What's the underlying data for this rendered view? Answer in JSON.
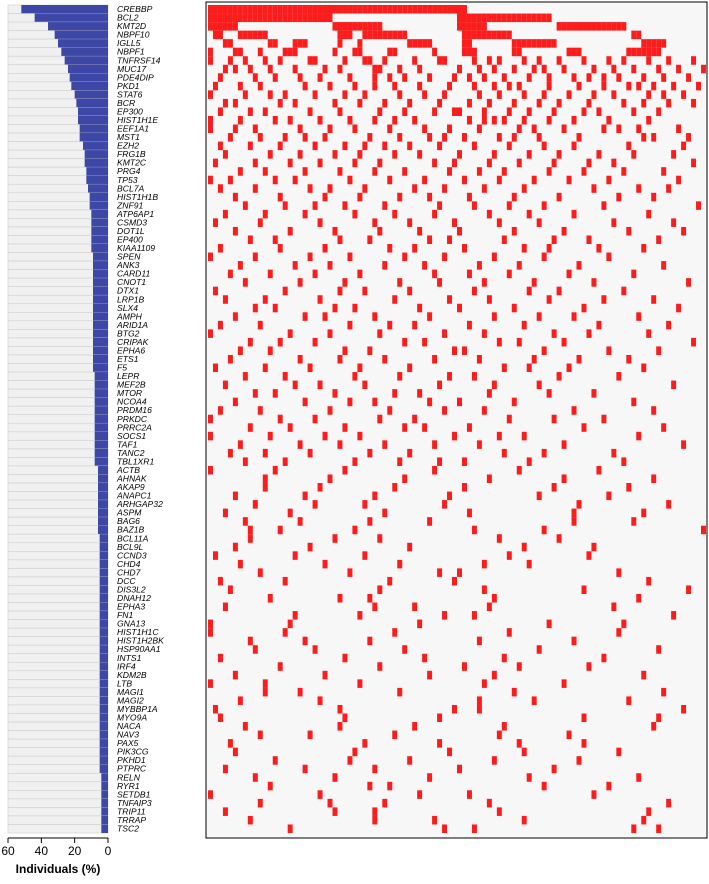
{
  "chart_data": {
    "type": "oncoprint",
    "xlabel": "Individuals (%)",
    "xlim": [
      60,
      0
    ],
    "xticks": [
      60,
      40,
      20,
      0
    ],
    "bar_color": "#3c47a6",
    "cell_color": "#fb1c1c",
    "samples_xlim": [
      0,
      100
    ],
    "genes": [
      "CREBBP",
      "BCL2",
      "KMT2D",
      "NBPF10",
      "IGLL5",
      "NBPF1",
      "TNFRSF14",
      "MUC17",
      "PDE4DIP",
      "PKD1",
      "STAT6",
      "BCR",
      "EP300",
      "HIST1H1E",
      "EEF1A1",
      "MST1",
      "EZH2",
      "FRG1B",
      "KMT2C",
      "PRG4",
      "TP53",
      "BCL7A",
      "HIST1H1B",
      "ZNF91",
      "ATP6AP1",
      "CSMD3",
      "DOT1L",
      "EP400",
      "KIAA1109",
      "SPEN",
      "ANK3",
      "CARD11",
      "CNOT1",
      "DTX1",
      "LRP1B",
      "SLX4",
      "AMPH",
      "ARID1A",
      "BTG2",
      "CRIPAK",
      "EPHA6",
      "ETS1",
      "F5",
      "LEPR",
      "MEF2B",
      "MTOR",
      "NCOA4",
      "PRDM16",
      "PRKDC",
      "PRRC2A",
      "SOCS1",
      "TAF1",
      "TANC2",
      "TBL1XR1",
      "ACTB",
      "AHNAK",
      "AKAP9",
      "ANAPC1",
      "ARHGAP32",
      "ASPM",
      "BAG6",
      "BAZ1B",
      "BCL11A",
      "BCL9L",
      "CCND3",
      "CHD4",
      "CHD7",
      "DCC",
      "DIS3L2",
      "DNAH12",
      "EPHA3",
      "FN1",
      "GNA13",
      "HIST1H1C",
      "HIST1H2BK",
      "HSP90AA1",
      "INTS1",
      "IRF4",
      "KDM2B",
      "LTB",
      "MAGI1",
      "MAGI2",
      "MYBBP1A",
      "MYO9A",
      "NACA",
      "NAV3",
      "PAX5",
      "PIK3CG",
      "PKHD1",
      "PTPRC",
      "RELN",
      "RYR1",
      "SETDB1",
      "TNFAIP3",
      "TRIP11",
      "TRRAP",
      "TSC2"
    ],
    "frequency": [
      52,
      44,
      36,
      32,
      30,
      28,
      26,
      24,
      23,
      22,
      20,
      19,
      18,
      18,
      17,
      17,
      15,
      14,
      14,
      13,
      13,
      12,
      11,
      11,
      10,
      10,
      10,
      10,
      10,
      9,
      9,
      9,
      9,
      9,
      9,
      9,
      9,
      9,
      9,
      9,
      9,
      9,
      9,
      8,
      8,
      8,
      8,
      8,
      8,
      8,
      8,
      8,
      8,
      8,
      6,
      6,
      6,
      6,
      6,
      6,
      6,
      6,
      5,
      5,
      5,
      5,
      5,
      5,
      5,
      5,
      5,
      5,
      5,
      5,
      5,
      5,
      5,
      5,
      5,
      5,
      5,
      5,
      5,
      5,
      5,
      5,
      5,
      5,
      5,
      5,
      4,
      4,
      4,
      4,
      4,
      4,
      4
    ],
    "mutated_samples": [
      [
        0,
        1,
        2,
        3,
        4,
        5,
        6,
        7,
        8,
        9,
        10,
        11,
        12,
        13,
        14,
        15,
        16,
        17,
        18,
        19,
        20,
        21,
        22,
        23,
        24,
        25,
        26,
        27,
        28,
        29,
        30,
        31,
        32,
        33,
        34,
        35,
        36,
        37,
        38,
        39,
        40,
        41,
        42,
        43,
        44,
        45,
        46,
        47,
        48,
        49,
        50,
        51
      ],
      [
        0,
        1,
        2,
        3,
        4,
        5,
        6,
        7,
        8,
        9,
        10,
        11,
        12,
        13,
        14,
        15,
        16,
        17,
        18,
        19,
        20,
        21,
        22,
        23,
        24,
        50,
        51,
        52,
        53,
        54,
        55,
        56,
        57,
        58,
        59,
        60,
        61,
        62,
        63,
        64,
        65,
        66,
        67,
        68
      ],
      [
        0,
        1,
        2,
        3,
        4,
        5,
        25,
        26,
        27,
        28,
        29,
        30,
        31,
        32,
        33,
        34,
        50,
        51,
        52,
        53,
        54,
        55,
        70,
        71,
        72,
        73,
        74,
        75,
        76,
        77,
        78,
        79,
        80,
        81,
        82,
        83
      ],
      [
        1,
        2,
        6,
        7,
        8,
        9,
        10,
        11,
        26,
        27,
        28,
        31,
        32,
        33,
        34,
        35,
        36,
        37,
        38,
        39,
        51,
        52,
        53,
        54,
        55,
        56,
        57,
        58,
        59,
        60,
        85,
        86
      ],
      [
        3,
        4,
        12,
        13,
        17,
        18,
        19,
        26,
        30,
        40,
        41,
        42,
        43,
        44,
        51,
        52,
        61,
        62,
        63,
        64,
        65,
        66,
        67,
        68,
        69,
        87,
        88,
        89,
        90,
        91
      ],
      [
        0,
        5,
        6,
        10,
        15,
        16,
        17,
        25,
        29,
        30,
        36,
        37,
        45,
        51,
        52,
        53,
        61,
        62,
        72,
        73,
        74,
        84,
        85,
        86,
        87,
        88,
        89,
        90
      ],
      [
        0,
        4,
        7,
        11,
        14,
        20,
        21,
        27,
        31,
        32,
        35,
        41,
        46,
        47,
        53,
        56,
        58,
        63,
        66,
        70,
        75,
        80,
        83,
        88,
        92,
        97
      ],
      [
        3,
        5,
        8,
        12,
        17,
        23,
        26,
        33,
        34,
        38,
        42,
        50,
        54,
        57,
        61,
        65,
        67,
        71,
        77,
        81,
        85,
        90,
        94,
        99
      ],
      [
        2,
        9,
        13,
        18,
        22,
        28,
        33,
        36,
        39,
        44,
        49,
        52,
        55,
        59,
        64,
        68,
        73,
        76,
        79,
        82,
        87,
        91,
        96
      ],
      [
        1,
        6,
        10,
        19,
        24,
        29,
        33,
        37,
        42,
        48,
        53,
        57,
        60,
        62,
        68,
        74,
        79,
        84,
        86,
        89,
        93,
        98
      ],
      [
        0,
        7,
        12,
        15,
        21,
        27,
        31,
        38,
        43,
        47,
        54,
        58,
        63,
        67,
        72,
        77,
        81,
        88,
        91,
        95
      ],
      [
        3,
        5,
        14,
        17,
        25,
        30,
        35,
        40,
        46,
        52,
        56,
        61,
        66,
        70,
        76,
        83,
        87,
        92,
        97
      ],
      [
        2,
        8,
        11,
        20,
        26,
        34,
        39,
        45,
        49,
        50,
        55,
        60,
        64,
        69,
        75,
        78,
        85,
        90
      ],
      [
        0,
        6,
        13,
        16,
        22,
        28,
        33,
        37,
        41,
        52,
        55,
        57,
        59,
        63,
        68,
        73,
        80,
        88
      ],
      [
        0,
        5,
        9,
        18,
        24,
        29,
        36,
        43,
        48,
        54,
        62,
        65,
        71,
        79,
        82,
        86,
        94
      ],
      [
        4,
        10,
        15,
        19,
        23,
        32,
        38,
        44,
        47,
        51,
        58,
        61,
        66,
        74,
        87,
        89,
        96
      ],
      [
        2,
        8,
        14,
        21,
        27,
        31,
        35,
        40,
        46,
        53,
        60,
        67,
        73,
        84,
        95
      ],
      [
        3,
        12,
        18,
        25,
        30,
        37,
        42,
        50,
        57,
        64,
        70,
        78,
        85,
        93
      ],
      [
        1,
        9,
        16,
        22,
        29,
        34,
        45,
        49,
        56,
        62,
        69,
        76,
        81,
        97
      ],
      [
        6,
        11,
        19,
        26,
        33,
        39,
        48,
        54,
        59,
        68,
        75,
        83,
        91
      ],
      [
        0,
        4,
        13,
        17,
        28,
        36,
        43,
        51,
        58,
        65,
        72,
        80,
        94
      ],
      [
        2,
        9,
        20,
        24,
        31,
        41,
        47,
        55,
        63,
        77,
        86,
        92
      ],
      [
        5,
        14,
        23,
        30,
        38,
        44,
        52,
        61,
        70,
        82,
        89
      ],
      [
        7,
        15,
        21,
        27,
        35,
        46,
        53,
        60,
        67,
        79,
        98
      ],
      [
        3,
        11,
        19,
        29,
        37,
        45,
        56,
        64,
        73,
        88
      ],
      [
        1,
        10,
        22,
        33,
        40,
        49,
        58,
        66,
        81,
        93
      ],
      [
        5,
        16,
        25,
        34,
        42,
        50,
        61,
        71,
        84,
        95
      ],
      [
        8,
        13,
        26,
        32,
        44,
        48,
        59,
        69,
        76,
        90
      ],
      [
        2,
        14,
        23,
        36,
        41,
        51,
        63,
        68,
        78,
        87
      ],
      [
        0,
        9,
        20,
        28,
        39,
        47,
        57,
        67,
        80
      ],
      [
        6,
        17,
        24,
        35,
        43,
        54,
        62,
        74,
        91
      ],
      [
        4,
        12,
        21,
        30,
        45,
        52,
        60,
        72,
        85
      ],
      [
        7,
        18,
        27,
        38,
        46,
        55,
        65,
        77,
        96
      ],
      [
        1,
        15,
        26,
        31,
        40,
        53,
        64,
        70,
        83
      ],
      [
        3,
        11,
        22,
        37,
        48,
        56,
        68,
        79,
        89
      ],
      [
        9,
        13,
        25,
        29,
        42,
        50,
        61,
        75,
        94
      ],
      [
        5,
        19,
        23,
        33,
        44,
        57,
        66,
        73,
        86
      ],
      [
        2,
        10,
        28,
        36,
        41,
        52,
        63,
        78,
        92
      ],
      [
        0,
        16,
        24,
        34,
        47,
        55,
        69,
        76,
        88
      ],
      [
        8,
        14,
        21,
        39,
        43,
        58,
        62,
        71,
        97
      ],
      [
        6,
        12,
        27,
        32,
        49,
        51,
        67,
        80,
        90
      ],
      [
        4,
        18,
        26,
        35,
        45,
        54,
        65,
        74,
        84
      ],
      [
        1,
        11,
        20,
        30,
        40,
        59,
        64,
        72,
        87
      ],
      [
        7,
        15,
        29,
        38,
        48,
        53,
        70,
        82
      ],
      [
        3,
        17,
        22,
        31,
        46,
        57,
        66,
        93
      ],
      [
        9,
        13,
        25,
        37,
        42,
        56,
        68,
        77
      ],
      [
        5,
        19,
        28,
        33,
        44,
        50,
        61,
        85
      ],
      [
        2,
        10,
        24,
        36,
        47,
        55,
        73,
        89
      ],
      [
        0,
        14,
        21,
        34,
        41,
        60,
        69,
        79
      ],
      [
        8,
        16,
        27,
        39,
        43,
        52,
        75,
        91
      ],
      [
        0,
        12,
        23,
        30,
        49,
        58,
        63,
        86
      ],
      [
        6,
        18,
        26,
        35,
        45,
        54,
        71,
        95
      ],
      [
        4,
        11,
        20,
        32,
        40,
        59,
        67,
        81
      ],
      [
        7,
        15,
        29,
        38,
        46,
        51,
        64,
        83
      ],
      [
        0,
        13,
        27,
        45,
        62,
        78
      ],
      [
        11,
        24,
        39,
        56,
        71,
        89
      ],
      [
        11,
        22,
        37,
        51,
        69,
        84
      ],
      [
        5,
        19,
        33,
        48,
        66,
        80
      ],
      [
        9,
        21,
        31,
        47,
        74,
        92
      ],
      [
        3,
        16,
        35,
        52,
        73,
        87
      ],
      [
        7,
        18,
        32,
        44,
        73,
        85
      ],
      [
        8,
        14,
        29,
        53,
        67,
        99
      ],
      [
        8,
        25,
        34,
        58,
        70
      ],
      [
        5,
        20,
        40,
        63,
        77
      ],
      [
        1,
        17,
        31,
        60,
        76
      ],
      [
        6,
        23,
        38,
        55,
        64
      ],
      [
        10,
        28,
        46,
        50,
        82
      ],
      [
        2,
        15,
        36,
        49,
        88
      ],
      [
        4,
        34,
        55,
        75,
        96
      ],
      [
        12,
        26,
        32,
        57,
        86
      ],
      [
        3,
        33,
        41,
        56,
        81
      ],
      [
        17,
        30,
        47,
        53,
        93
      ],
      [
        0,
        16,
        42,
        68,
        83
      ],
      [
        0,
        15,
        37,
        60,
        82
      ],
      [
        8,
        19,
        32,
        54,
        73
      ],
      [
        9,
        21,
        39,
        66,
        90
      ],
      [
        2,
        27,
        43,
        59,
        79
      ],
      [
        14,
        34,
        51,
        62,
        76
      ],
      [
        5,
        23,
        44,
        57,
        87
      ],
      [
        0,
        11,
        30,
        55,
        71
      ],
      [
        11,
        18,
        38,
        61,
        91
      ],
      [
        6,
        22,
        54,
        65,
        84
      ],
      [
        1,
        26,
        49,
        54,
        95
      ],
      [
        2,
        27,
        46,
        75,
        90
      ],
      [
        7,
        26,
        41,
        59,
        89
      ],
      [
        10,
        20,
        37,
        58,
        72
      ],
      [
        4,
        31,
        46,
        62,
        75
      ],
      [
        5,
        29,
        48,
        63,
        82
      ],
      [
        13,
        28,
        40,
        57,
        74
      ],
      [
        3,
        19,
        33,
        50,
        69
      ],
      [
        9,
        25,
        44,
        64,
        86
      ],
      [
        12,
        32,
        36,
        67,
        80
      ],
      [
        0,
        22,
        42,
        52,
        77
      ],
      [
        10,
        24,
        35,
        56,
        92
      ],
      [
        3,
        25,
        33,
        58,
        88
      ],
      [
        8,
        33,
        45,
        63,
        87
      ],
      [
        16,
        47,
        53,
        85,
        90
      ]
    ]
  }
}
